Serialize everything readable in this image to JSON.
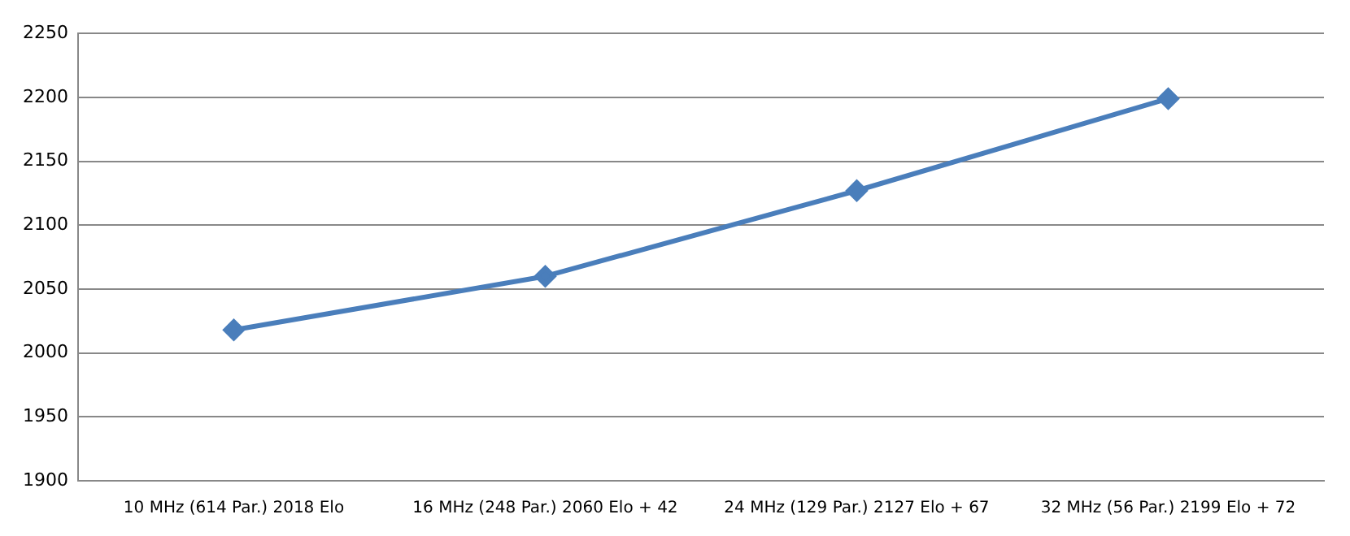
{
  "chart_data": {
    "type": "line",
    "categories": [
      "10 MHz (614 Par.) 2018 Elo",
      "16 MHz (248 Par.) 2060 Elo + 42",
      "24 MHz (129 Par.) 2127 Elo + 67",
      "32 MHz (56 Par.) 2199 Elo + 72"
    ],
    "series": [
      {
        "color": "#4a7ebb",
        "values": [
          2018,
          2060,
          2127,
          2199
        ]
      }
    ],
    "ylim": [
      1900,
      2250
    ],
    "yticks": [
      1900,
      1950,
      2000,
      2050,
      2100,
      2150,
      2200,
      2250
    ],
    "grid": "y",
    "legend": false,
    "marker": "diamond",
    "line_style": "solid"
  }
}
